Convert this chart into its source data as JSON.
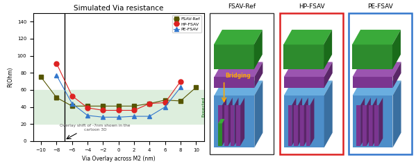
{
  "title": "Simulated Via resistance",
  "xlabel": "Via Overlay across M2 (nm)",
  "ylabel": "R(Ohm)",
  "ylim": [
    0,
    150
  ],
  "xlim": [
    -11,
    11
  ],
  "yticks": [
    0,
    20,
    40,
    60,
    80,
    100,
    120,
    140
  ],
  "xticks": [
    -10,
    -8,
    -6,
    -4,
    -2,
    0,
    2,
    4,
    6,
    8,
    10
  ],
  "expected_band": [
    20,
    60
  ],
  "vline_x": -7,
  "fsav_x": [
    -10,
    -8,
    -6,
    -4,
    -2,
    0,
    2,
    4,
    6,
    8,
    10
  ],
  "fsav_y": [
    75,
    51,
    41,
    41,
    41,
    41,
    41,
    44,
    48,
    47,
    63
  ],
  "hp_x": [
    -8,
    -6,
    -4,
    -2,
    0,
    2,
    4,
    6,
    8
  ],
  "hp_y": [
    91,
    53,
    39,
    36,
    36,
    36,
    44,
    45,
    70
  ],
  "pe_x": [
    -8,
    -6,
    -4,
    -2,
    0,
    2,
    4,
    6,
    8
  ],
  "pe_y": [
    77,
    44,
    30,
    28,
    28,
    29,
    29,
    40,
    63
  ],
  "fsav_color": "#555500",
  "hp_color": "#dd2222",
  "pe_color": "#3377cc",
  "expected_color": "#ddeedd",
  "annotation_text": "Overlay shift of -7nm shown in the\ncartoon 3D",
  "right_panel_labels": [
    "FSAV-Ref",
    "HP-FSAV",
    "PE-FSAV"
  ],
  "border_colors": [
    "#333333",
    "#dd2222",
    "#3377cc"
  ],
  "bridging_text": "Bridging",
  "bridging_color": "#ffaa00",
  "blue_base": "#4d8ec9",
  "blue_base_dark": "#3a6fa0",
  "blue_top_face": "#6aaee0",
  "purple_front": "#7b3590",
  "purple_side": "#5a2668",
  "purple_top": "#9b55b0",
  "green_front": "#2d8b2d",
  "green_top": "#3aaa3a",
  "green_side": "#1a6b1a"
}
